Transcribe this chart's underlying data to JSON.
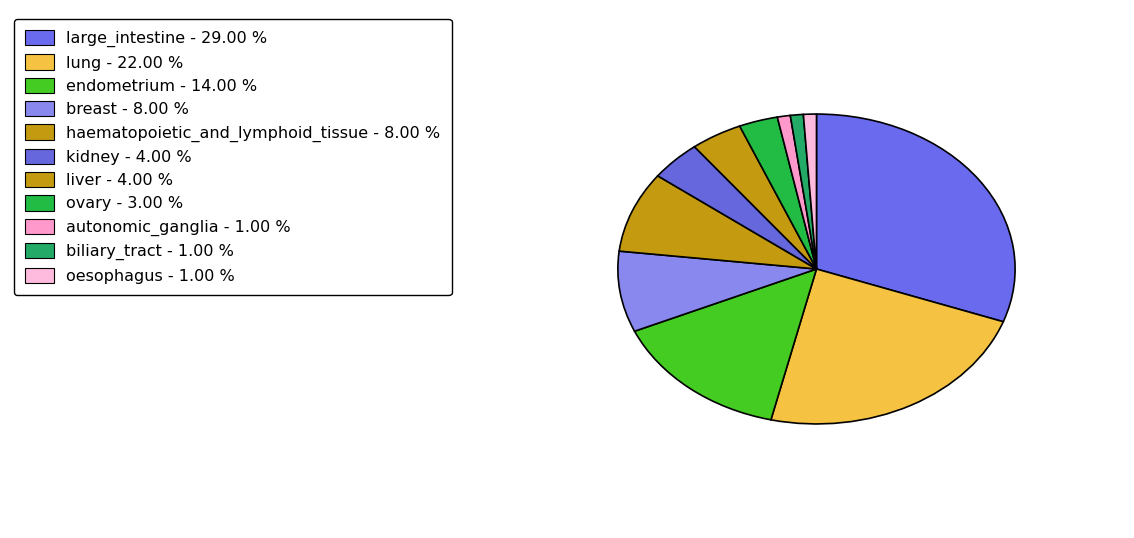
{
  "labels": [
    "large_intestine - 29.00 %",
    "lung - 22.00 %",
    "endometrium - 14.00 %",
    "breast - 8.00 %",
    "haematopoietic_and_lymphoid_tissue - 8.00 %",
    "kidney - 4.00 %",
    "liver - 4.00 %",
    "ovary - 3.00 %",
    "autonomic_ganglia - 1.00 %",
    "biliary_tract - 1.00 %",
    "oesophagus - 1.00 %"
  ],
  "values": [
    29,
    22,
    14,
    8,
    8,
    4,
    4,
    3,
    1,
    1,
    1
  ],
  "colors": [
    "#6a6aee",
    "#f5c242",
    "#44cc22",
    "#8888ee",
    "#c49a10",
    "#6666dd",
    "#c49a10",
    "#22bb44",
    "#ff99cc",
    "#22aa66",
    "#ffbbdd"
  ],
  "startangle": 90,
  "figsize": [
    11.34,
    5.38
  ],
  "dpi": 100,
  "legend_fontsize": 11.5
}
